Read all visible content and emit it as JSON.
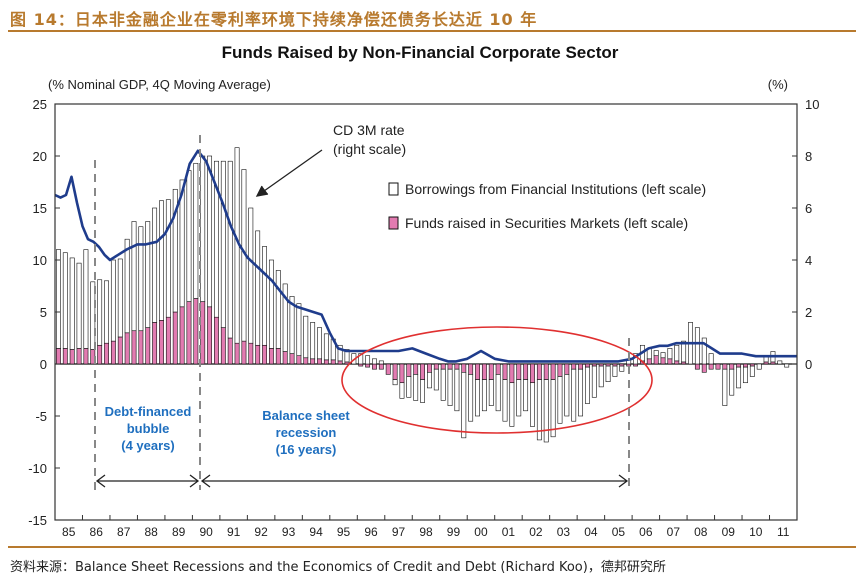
{
  "header": {
    "figure_title": "图 14：日本非金融企业在零利率环境下持续净偿还债务长达近 10 年"
  },
  "source": "资料来源：Balance Sheet Recessions and the Economics of Credit and Debt (Richard Koo)，德邦研究所",
  "chart_data": {
    "type": "bar",
    "title": "Funds Raised by Non-Financial Corporate Sector",
    "left_axis_label": "(% Nominal GDP, 4Q Moving Average)",
    "right_axis_label": "(%)",
    "left_ylim": [
      -15,
      25
    ],
    "right_ylim": [
      -6,
      10
    ],
    "left_ticks": [
      "25",
      "20",
      "15",
      "10",
      "5",
      "0",
      "-5",
      "-10",
      "-15"
    ],
    "right_ticks": [
      "10",
      "8",
      "6",
      "4",
      "2",
      "0"
    ],
    "x_ticks": [
      "85",
      "86",
      "87",
      "88",
      "89",
      "90",
      "91",
      "92",
      "93",
      "94",
      "95",
      "96",
      "97",
      "98",
      "99",
      "00",
      "01",
      "02",
      "03",
      "04",
      "05",
      "06",
      "07",
      "08",
      "09",
      "10",
      "11"
    ],
    "legend": {
      "placement": "top-right",
      "borrowings": "Borrowings from Financial Institutions (left scale)",
      "securities": "Funds raised in Securities Markets (left scale)"
    },
    "annotations": {
      "cd_rate_line1": "CD 3M rate",
      "cd_rate_line2": "(right scale)",
      "bubble_line1": "Debt-financed",
      "bubble_line2": "bubble",
      "bubble_line3": "(4 years)",
      "recession_line1": "Balance sheet",
      "recession_line2": "recession",
      "recession_line3": "(16 years)"
    },
    "series": [
      {
        "name": "Borrowings from Financial Institutions (left scale)",
        "color": "#ffffff",
        "values": [
          9.5,
          9.2,
          8.8,
          8.2,
          9.5,
          6.5,
          6.3,
          6.0,
          7.8,
          7.5,
          9.0,
          10.5,
          10.0,
          10.2,
          11.0,
          11.5,
          11.3,
          11.8,
          12.2,
          12.6,
          13.0,
          14.0,
          14.5,
          15.0,
          16.0,
          17.0,
          18.8,
          16.5,
          13.0,
          11.0,
          9.5,
          8.5,
          7.5,
          6.5,
          5.5,
          5.0,
          4.0,
          3.5,
          3.0,
          2.5,
          2.0,
          1.5,
          1.2,
          1.0,
          1.0,
          0.8,
          0.5,
          0.3,
          0.0,
          -0.5,
          -1.5,
          -2.0,
          -2.5,
          -2.2,
          -1.5,
          -2.0,
          -3.0,
          -3.5,
          -4.0,
          -6.3,
          -4.5,
          -3.5,
          -3.0,
          -2.5,
          -3.5,
          -4.0,
          -4.2,
          -3.5,
          -3.0,
          -4.2,
          -5.8,
          -6.0,
          -5.5,
          -4.5,
          -4.0,
          -5.0,
          -4.5,
          -3.5,
          -3.0,
          -2.0,
          -1.5,
          -1.0,
          -0.5,
          0.5,
          1.0,
          1.5,
          1.0,
          0.5,
          0.5,
          1.0,
          1.5,
          2.0,
          4.0,
          3.5,
          2.5,
          1.0,
          0.0,
          -3.5,
          -2.5,
          -2.0,
          -1.5,
          -1.0,
          -0.5,
          0.5,
          1.0,
          0.3,
          -0.3
        ]
      },
      {
        "name": "Funds raised in Securities Markets (left scale)",
        "color": "#e27bb1",
        "values": [
          1.5,
          1.5,
          1.4,
          1.5,
          1.5,
          1.4,
          1.8,
          2.0,
          2.2,
          2.6,
          3.0,
          3.2,
          3.2,
          3.5,
          4.0,
          4.2,
          4.5,
          5.0,
          5.5,
          6.0,
          6.3,
          6.0,
          5.5,
          4.5,
          3.5,
          2.5,
          2.0,
          2.2,
          2.0,
          1.8,
          1.8,
          1.5,
          1.5,
          1.2,
          1.0,
          0.8,
          0.6,
          0.5,
          0.5,
          0.4,
          0.4,
          0.3,
          0.2,
          0.0,
          -0.2,
          -0.3,
          -0.5,
          -0.5,
          -1.0,
          -1.5,
          -1.8,
          -1.2,
          -1.0,
          -1.5,
          -0.8,
          -0.5,
          -0.5,
          -0.5,
          -0.5,
          -0.8,
          -1.0,
          -1.5,
          -1.5,
          -1.5,
          -1.0,
          -1.5,
          -1.8,
          -1.5,
          -1.5,
          -1.8,
          -1.5,
          -1.5,
          -1.5,
          -1.2,
          -1.0,
          -0.5,
          -0.5,
          -0.3,
          -0.2,
          -0.2,
          -0.2,
          -0.2,
          -0.2,
          -0.2,
          -0.2,
          0.3,
          0.5,
          0.8,
          0.6,
          0.5,
          0.3,
          0.2,
          0.0,
          -0.5,
          -0.8,
          -0.5,
          -0.5,
          -0.5,
          -0.5,
          -0.3,
          -0.3,
          -0.2,
          0.0,
          0.2,
          0.2,
          0.0,
          0.0
        ]
      },
      {
        "name": "CD 3M rate (right scale)",
        "color": "#1f3c8c",
        "type": "line",
        "x": [
          85.0,
          85.2,
          85.4,
          85.6,
          85.8,
          86.0,
          86.2,
          86.4,
          86.6,
          86.8,
          87.0,
          87.3,
          87.6,
          88.0,
          88.3,
          88.7,
          89.0,
          89.3,
          89.6,
          89.9,
          90.2,
          90.5,
          90.8,
          91.1,
          91.4,
          91.7,
          92.0,
          92.3,
          92.6,
          92.9,
          93.2,
          93.5,
          93.8,
          94.1,
          94.4,
          94.7,
          95.0,
          95.3,
          95.6,
          96.0,
          96.5,
          97.0,
          97.5,
          98.0,
          98.5,
          99.0,
          99.3,
          99.6,
          100.0,
          100.5,
          101.0,
          101.5,
          102.0,
          102.5,
          103.0,
          103.5,
          104.0,
          104.5,
          105.0,
          105.5,
          106.0,
          106.3,
          106.6,
          107.0,
          107.3,
          107.6,
          108.0,
          108.3,
          108.6,
          108.9,
          109.2,
          109.6,
          110.0,
          110.5,
          111.0,
          111.5,
          112.0
        ],
        "y": [
          6.5,
          6.4,
          6.5,
          7.2,
          6.2,
          5.3,
          4.8,
          4.7,
          4.5,
          4.2,
          4.0,
          4.2,
          4.4,
          4.6,
          4.6,
          4.7,
          5.0,
          5.6,
          6.5,
          7.7,
          8.2,
          7.8,
          7.0,
          6.2,
          5.3,
          4.6,
          4.1,
          3.8,
          3.5,
          3.2,
          2.8,
          2.4,
          2.2,
          2.1,
          2.0,
          1.9,
          1.2,
          0.6,
          0.5,
          0.5,
          0.5,
          0.5,
          0.5,
          0.6,
          0.4,
          0.2,
          0.1,
          0.1,
          0.2,
          0.5,
          0.2,
          0.1,
          0.1,
          0.1,
          0.1,
          0.1,
          0.1,
          0.1,
          0.1,
          0.1,
          0.2,
          0.4,
          0.6,
          0.7,
          0.7,
          0.8,
          0.8,
          0.8,
          0.8,
          0.6,
          0.4,
          0.4,
          0.4,
          0.3,
          0.3,
          0.3,
          0.3
        ]
      }
    ]
  }
}
